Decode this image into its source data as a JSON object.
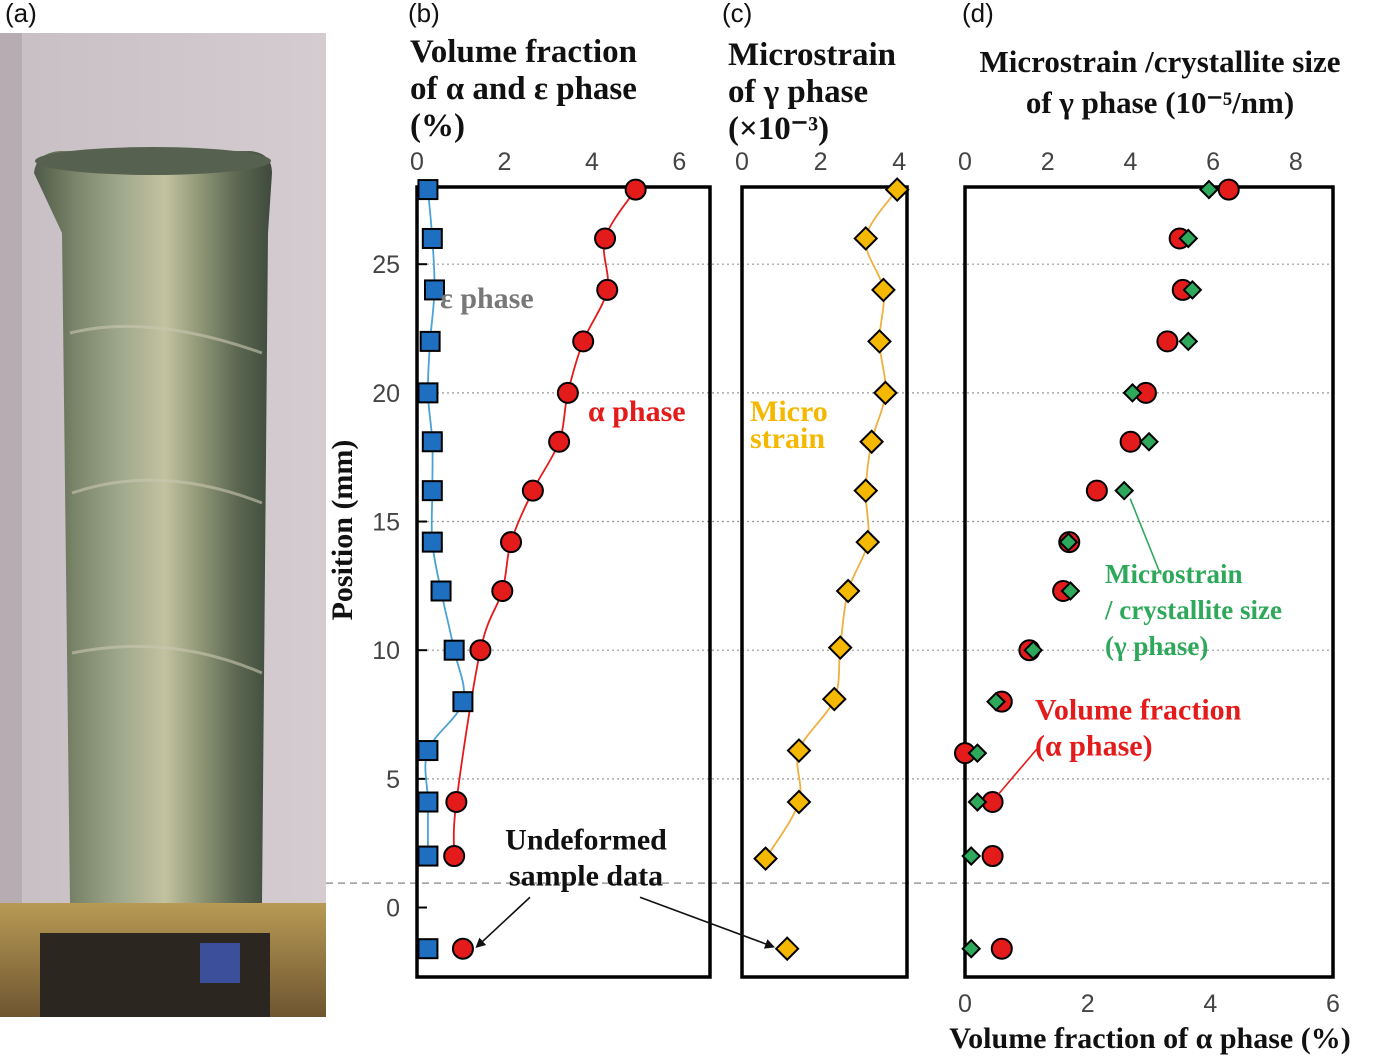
{
  "figure": {
    "panel_labels": [
      "(a)",
      "(b)",
      "(c)",
      "(d)"
    ],
    "colors": {
      "alpha": "#e31b1b",
      "epsilon": "#1e6fc0",
      "epsilon_line": "#4aa3d6",
      "microstrain": "#f5b800",
      "microstrain_line": "#f0b040",
      "crystallite": "#2ea85a",
      "grid": "#999999",
      "frame": "#000000"
    },
    "photo": {
      "icon": "photo-of-deformed-sample-tube"
    }
  },
  "chart_data": [
    {
      "panel": "b",
      "type": "scatter",
      "title_lines": [
        "Volume fraction",
        "of α and ε phase",
        "(%)"
      ],
      "ylabel": "Position (mm)",
      "xlim": [
        0,
        6.7
      ],
      "xticks": [
        "0",
        "2",
        "4",
        "6"
      ],
      "ylim": [
        -2.7,
        28.0
      ],
      "yticks": [
        "0",
        "5",
        "10",
        "15",
        "20",
        "25"
      ],
      "annotations": {
        "epsilon_label": "ε phase",
        "alpha_label": "α phase",
        "undeformed_line1": "Undeformed",
        "undeformed_line2": "sample data"
      },
      "series": [
        {
          "name": "α phase",
          "marker": "circle",
          "points": [
            [
              5.0,
              27.9
            ],
            [
              4.3,
              26.0
            ],
            [
              4.35,
              24.0
            ],
            [
              3.8,
              22.0
            ],
            [
              3.45,
              20.0
            ],
            [
              3.25,
              18.1
            ],
            [
              2.65,
              16.2
            ],
            [
              2.15,
              14.2
            ],
            [
              1.95,
              12.3
            ],
            [
              1.45,
              10.0
            ],
            [
              0.9,
              4.1
            ],
            [
              0.85,
              2.0
            ]
          ],
          "undeformed": [
            [
              1.05,
              -1.6
            ]
          ]
        },
        {
          "name": "ε phase",
          "marker": "square",
          "points": [
            [
              0.25,
              27.9
            ],
            [
              0.35,
              26.0
            ],
            [
              0.4,
              24.0
            ],
            [
              0.3,
              22.0
            ],
            [
              0.25,
              20.0
            ],
            [
              0.35,
              18.1
            ],
            [
              0.35,
              16.2
            ],
            [
              0.35,
              14.2
            ],
            [
              0.55,
              12.3
            ],
            [
              0.85,
              10.0
            ],
            [
              1.05,
              8.0
            ],
            [
              0.25,
              6.1
            ],
            [
              0.25,
              4.1
            ],
            [
              0.25,
              2.0
            ]
          ],
          "undeformed": [
            [
              0.25,
              -1.6
            ]
          ]
        }
      ]
    },
    {
      "panel": "c",
      "type": "scatter",
      "title_lines": [
        "Microstrain",
        "of γ phase",
        "(×10⁻³)"
      ],
      "xlim": [
        0,
        4.2
      ],
      "xticks": [
        "0",
        "2",
        "4"
      ],
      "ylim": [
        -2.7,
        28.0
      ],
      "annotations": {
        "label_line1": "Micro",
        "label_line2": "strain"
      },
      "series": [
        {
          "name": "Micro strain",
          "marker": "diamond",
          "points": [
            [
              3.95,
              27.9
            ],
            [
              3.15,
              26.0
            ],
            [
              3.6,
              24.0
            ],
            [
              3.5,
              22.0
            ],
            [
              3.65,
              20.0
            ],
            [
              3.3,
              18.1
            ],
            [
              3.15,
              16.2
            ],
            [
              3.2,
              14.2
            ],
            [
              2.7,
              12.3
            ],
            [
              2.5,
              10.1
            ],
            [
              2.35,
              8.1
            ],
            [
              1.45,
              6.1
            ],
            [
              1.45,
              4.1
            ],
            [
              0.6,
              1.9
            ]
          ],
          "undeformed": [
            [
              1.15,
              -1.6
            ]
          ]
        }
      ]
    },
    {
      "panel": "d",
      "type": "scatter",
      "title_lines": [
        "Microstrain /crystallite size",
        "of γ phase (10⁻⁵/nm)"
      ],
      "xlabel": "Volume fraction of α phase (%)",
      "x_top_lim": [
        0,
        8.9
      ],
      "x_top_ticks": [
        "0",
        "2",
        "4",
        "6",
        "8"
      ],
      "x_bottom_lim": [
        0,
        6.0
      ],
      "x_bottom_ticks": [
        "0",
        "2",
        "4",
        "6"
      ],
      "ylim": [
        -2.7,
        28.0
      ],
      "annotations": {
        "green_line1": "Microstrain",
        "green_line2": "/ crystallite size",
        "green_line3": "(γ phase)",
        "red_line1": "Volume fraction",
        "red_line2": "(α phase)"
      },
      "series": [
        {
          "name": "Volume fraction (α phase)",
          "axis": "bottom",
          "marker": "circle",
          "points": [
            [
              4.3,
              27.9
            ],
            [
              3.5,
              26.0
            ],
            [
              3.55,
              24.0
            ],
            [
              3.3,
              22.0
            ],
            [
              2.95,
              20.0
            ],
            [
              2.7,
              18.1
            ],
            [
              2.15,
              16.2
            ],
            [
              1.7,
              14.2
            ],
            [
              1.6,
              12.3
            ],
            [
              1.05,
              10.0
            ],
            [
              0.6,
              8.0
            ],
            [
              0.0,
              6.0
            ],
            [
              0.45,
              4.1
            ],
            [
              0.45,
              2.0
            ],
            [
              0.6,
              -1.6
            ]
          ]
        },
        {
          "name": "Microstrain / crystallite size (γ phase)",
          "axis": "top",
          "marker": "diamond",
          "points": [
            [
              5.9,
              27.9
            ],
            [
              5.4,
              26.0
            ],
            [
              5.5,
              24.0
            ],
            [
              5.4,
              22.0
            ],
            [
              4.05,
              20.0
            ],
            [
              4.45,
              18.1
            ],
            [
              3.85,
              16.2
            ],
            [
              2.5,
              14.2
            ],
            [
              2.55,
              12.3
            ],
            [
              1.65,
              10.0
            ],
            [
              0.75,
              8.0
            ],
            [
              0.3,
              6.0
            ],
            [
              0.3,
              4.1
            ],
            [
              0.15,
              2.0
            ],
            [
              0.15,
              -1.6
            ]
          ]
        }
      ]
    }
  ]
}
